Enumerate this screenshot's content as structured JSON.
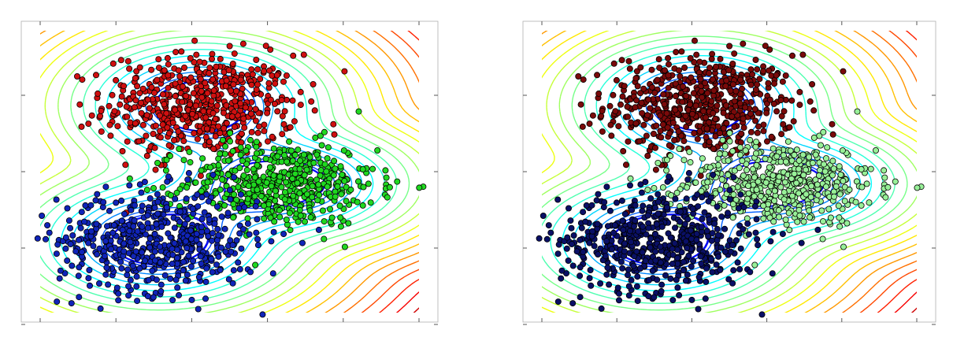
{
  "chart_data": [
    {
      "type": "scatter",
      "title": "",
      "xlabel": "",
      "ylabel": "",
      "xlim": [
        0,
        1
      ],
      "ylim": [
        0,
        1
      ],
      "grid": false,
      "contours": true,
      "contour_colormap": "jet",
      "series": [
        {
          "color": "#d01010",
          "center": [
            0.43,
            0.72
          ],
          "spread": [
            0.115,
            0.085
          ],
          "count": 560
        },
        {
          "color": "#20d820",
          "center": [
            0.62,
            0.46
          ],
          "spread": [
            0.115,
            0.07
          ],
          "count": 520
        },
        {
          "color": "#1024b8",
          "center": [
            0.33,
            0.27
          ],
          "spread": [
            0.12,
            0.085
          ],
          "count": 560
        }
      ]
    },
    {
      "type": "scatter",
      "title": "",
      "xlabel": "",
      "ylabel": "",
      "xlim": [
        0,
        1
      ],
      "ylim": [
        0,
        1
      ],
      "grid": false,
      "contours": true,
      "contour_colormap": "jet",
      "series": [
        {
          "color": "#7a0a0a",
          "center": [
            0.43,
            0.72
          ],
          "spread": [
            0.115,
            0.085
          ],
          "count": 560
        },
        {
          "color": "#98f098",
          "center": [
            0.62,
            0.46
          ],
          "spread": [
            0.115,
            0.07
          ],
          "count": 520
        },
        {
          "color": "#0a1066",
          "center": [
            0.33,
            0.27
          ],
          "spread": [
            0.12,
            0.085
          ],
          "count": 560
        }
      ]
    }
  ]
}
